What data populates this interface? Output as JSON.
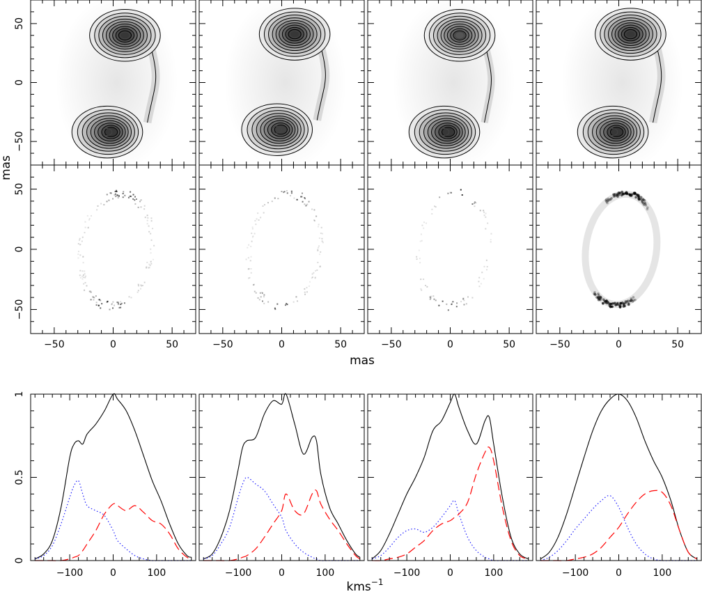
{
  "chart_data": [
    {
      "type": "heatmap",
      "row": "contour maps",
      "ylabel": "mas",
      "x_ticks": [],
      "y_ticks": [
        "50",
        "0",
        "−50"
      ],
      "xlim": [
        -70,
        70
      ],
      "ylim": [
        -70,
        70
      ],
      "colormap": "grayscale with black contours",
      "panels": [
        {
          "peaks": [
            {
              "x": 10,
              "y": 40,
              "amp": 1.0
            },
            {
              "x": -5,
              "y": -42,
              "amp": 1.0
            }
          ],
          "bridge": 0.45
        },
        {
          "peaks": [
            {
              "x": 11,
              "y": 41,
              "amp": 1.0
            },
            {
              "x": -4,
              "y": -40,
              "amp": 0.95
            }
          ],
          "bridge": 0.45
        },
        {
          "peaks": [
            {
              "x": 8,
              "y": 40,
              "amp": 0.85
            },
            {
              "x": -5,
              "y": -42,
              "amp": 1.0
            }
          ],
          "bridge": 0.4
        },
        {
          "peaks": [
            {
              "x": 10,
              "y": 41,
              "amp": 1.0
            },
            {
              "x": -5,
              "y": -42,
              "amp": 1.0
            }
          ],
          "bridge": 0.45
        }
      ]
    },
    {
      "type": "heatmap",
      "row": "scatter maps",
      "xlabel": "mas",
      "x_ticks": [
        "−50",
        "0",
        "50"
      ],
      "y_ticks": [
        "50",
        "0",
        "−50"
      ],
      "xlim": [
        -70,
        70
      ],
      "ylim": [
        -70,
        70
      ],
      "ring": {
        "center_x": 2,
        "center_y": 0,
        "rx": 30,
        "ry": 47,
        "tilt_deg": -8
      },
      "panels": [
        {
          "style": "speckle",
          "density": 0.6
        },
        {
          "style": "speckle",
          "density": 0.45
        },
        {
          "style": "speckle",
          "density": 0.3
        },
        {
          "style": "smooth",
          "density": 1.0
        }
      ]
    },
    {
      "type": "line",
      "row": "spectra",
      "xlabel": "kms",
      "xlabel_sup": "−1",
      "x_ticks": [
        "−100",
        "0",
        "100"
      ],
      "y_ticks": [
        "1",
        "0.5",
        "0"
      ],
      "xlim": [
        -190,
        190
      ],
      "ylim": [
        0,
        1
      ],
      "series_styles": [
        {
          "style": "solid",
          "color": "#000000"
        },
        {
          "style": "dotted",
          "color": "#1a1aff"
        },
        {
          "style": "dashed",
          "color": "#ff0000"
        }
      ],
      "panels": [
        {
          "x": [
            -180,
            -160,
            -140,
            -120,
            -100,
            -90,
            -80,
            -70,
            -60,
            -40,
            -20,
            0,
            10,
            30,
            50,
            70,
            90,
            110,
            130,
            150,
            170,
            180
          ],
          "total": [
            0.01,
            0.04,
            0.12,
            0.32,
            0.62,
            0.7,
            0.72,
            0.7,
            0.76,
            0.82,
            0.9,
            1.0,
            0.97,
            0.9,
            0.78,
            0.63,
            0.48,
            0.36,
            0.22,
            0.1,
            0.03,
            0.02
          ],
          "blue": [
            0.01,
            0.03,
            0.09,
            0.22,
            0.38,
            0.45,
            0.48,
            0.4,
            0.33,
            0.3,
            0.27,
            0.18,
            0.12,
            0.07,
            0.03,
            0.01,
            0.0,
            0.0,
            0.0,
            0.0,
            0.0,
            0.0
          ],
          "red": [
            0.0,
            0.0,
            0.0,
            0.0,
            0.01,
            0.02,
            0.03,
            0.06,
            0.1,
            0.18,
            0.28,
            0.34,
            0.33,
            0.3,
            0.33,
            0.29,
            0.24,
            0.22,
            0.16,
            0.07,
            0.02,
            0.01
          ]
        },
        {
          "x": [
            -180,
            -160,
            -140,
            -120,
            -100,
            -90,
            -80,
            -60,
            -40,
            -20,
            0,
            10,
            30,
            50,
            70,
            80,
            90,
            110,
            130,
            150,
            170,
            180
          ],
          "total": [
            0.01,
            0.04,
            0.14,
            0.3,
            0.55,
            0.68,
            0.72,
            0.74,
            0.88,
            0.96,
            0.94,
            1.0,
            0.82,
            0.64,
            0.74,
            0.72,
            0.52,
            0.32,
            0.22,
            0.12,
            0.04,
            0.02
          ],
          "blue": [
            0.01,
            0.03,
            0.1,
            0.2,
            0.38,
            0.46,
            0.5,
            0.46,
            0.42,
            0.34,
            0.26,
            0.18,
            0.1,
            0.05,
            0.02,
            0.01,
            0.0,
            0.0,
            0.0,
            0.0,
            0.0,
            0.0
          ],
          "red": [
            0.0,
            0.0,
            0.0,
            0.0,
            0.01,
            0.02,
            0.03,
            0.07,
            0.14,
            0.22,
            0.3,
            0.4,
            0.3,
            0.28,
            0.4,
            0.42,
            0.34,
            0.25,
            0.18,
            0.1,
            0.03,
            0.01
          ]
        },
        {
          "x": [
            -180,
            -160,
            -140,
            -120,
            -100,
            -80,
            -60,
            -40,
            -20,
            0,
            10,
            20,
            40,
            60,
            80,
            90,
            100,
            120,
            140,
            160,
            180
          ],
          "total": [
            0.01,
            0.06,
            0.16,
            0.28,
            0.4,
            0.5,
            0.62,
            0.78,
            0.84,
            0.95,
            1.0,
            0.92,
            0.78,
            0.7,
            0.84,
            0.86,
            0.7,
            0.38,
            0.14,
            0.04,
            0.01
          ],
          "blue": [
            0.01,
            0.03,
            0.08,
            0.14,
            0.18,
            0.19,
            0.17,
            0.2,
            0.26,
            0.33,
            0.36,
            0.28,
            0.14,
            0.06,
            0.02,
            0.01,
            0.0,
            0.0,
            0.0,
            0.0,
            0.0
          ],
          "red": [
            0.0,
            0.0,
            0.01,
            0.02,
            0.04,
            0.08,
            0.12,
            0.18,
            0.22,
            0.24,
            0.26,
            0.28,
            0.35,
            0.52,
            0.65,
            0.68,
            0.6,
            0.32,
            0.12,
            0.03,
            0.01
          ]
        },
        {
          "x": [
            -180,
            -160,
            -140,
            -120,
            -100,
            -80,
            -60,
            -40,
            -20,
            0,
            20,
            40,
            60,
            80,
            100,
            120,
            140,
            160,
            180
          ],
          "total": [
            0.01,
            0.05,
            0.14,
            0.28,
            0.45,
            0.62,
            0.78,
            0.9,
            0.97,
            1.0,
            0.96,
            0.86,
            0.72,
            0.6,
            0.5,
            0.36,
            0.18,
            0.05,
            0.01
          ],
          "blue": [
            0.0,
            0.02,
            0.06,
            0.12,
            0.19,
            0.25,
            0.31,
            0.36,
            0.39,
            0.32,
            0.2,
            0.1,
            0.04,
            0.01,
            0.0,
            0.0,
            0.0,
            0.0,
            0.0
          ],
          "red": [
            0.0,
            0.0,
            0.0,
            0.0,
            0.01,
            0.02,
            0.04,
            0.08,
            0.14,
            0.2,
            0.28,
            0.35,
            0.4,
            0.42,
            0.41,
            0.33,
            0.18,
            0.05,
            0.01
          ]
        }
      ]
    }
  ]
}
